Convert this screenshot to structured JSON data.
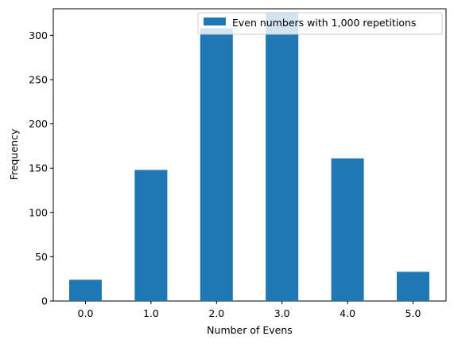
{
  "chart_data": {
    "type": "bar",
    "categories": [
      "0.0",
      "1.0",
      "2.0",
      "3.0",
      "4.0",
      "5.0"
    ],
    "series": [
      {
        "name": "Even numbers with 1,000 repetitions",
        "values": [
          24,
          148,
          308,
          326,
          161,
          33
        ]
      }
    ],
    "title": "",
    "xlabel": "Number of Evens",
    "ylabel": "Frequency",
    "ylim": [
      0,
      330
    ],
    "yticks": [
      0,
      50,
      100,
      150,
      200,
      250,
      300
    ],
    "grid": false,
    "legend_position": "top-right",
    "bar_color": "#1f77b4"
  }
}
